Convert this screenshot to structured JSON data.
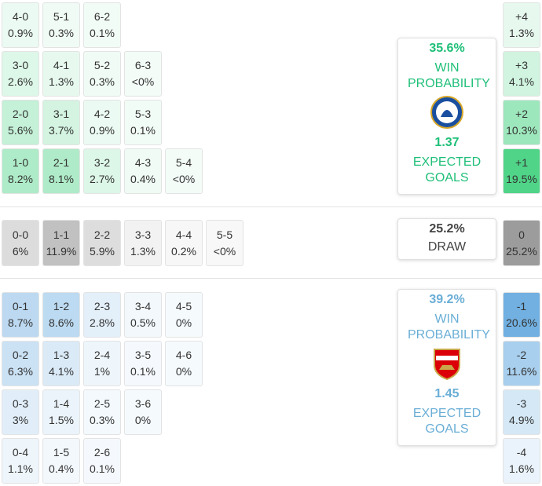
{
  "home": {
    "color": "#2ecc71",
    "rows": [
      [
        {
          "score": "4-0",
          "pct": "0.9%"
        },
        {
          "score": "5-1",
          "pct": "0.3%"
        },
        {
          "score": "6-2",
          "pct": "0.1%"
        }
      ],
      [
        {
          "score": "3-0",
          "pct": "2.6%"
        },
        {
          "score": "4-1",
          "pct": "1.3%"
        },
        {
          "score": "5-2",
          "pct": "0.3%"
        },
        {
          "score": "6-3",
          "pct": "<0%"
        }
      ],
      [
        {
          "score": "2-0",
          "pct": "5.6%"
        },
        {
          "score": "3-1",
          "pct": "3.7%"
        },
        {
          "score": "4-2",
          "pct": "0.9%"
        },
        {
          "score": "5-3",
          "pct": "0.1%"
        }
      ],
      [
        {
          "score": "1-0",
          "pct": "8.2%"
        },
        {
          "score": "2-1",
          "pct": "8.1%"
        },
        {
          "score": "3-2",
          "pct": "2.7%"
        },
        {
          "score": "4-3",
          "pct": "0.4%"
        },
        {
          "score": "5-4",
          "pct": "<0%"
        }
      ]
    ],
    "margins": [
      {
        "score": "+4",
        "pct": "1.3%"
      },
      {
        "score": "+3",
        "pct": "4.1%"
      },
      {
        "score": "+2",
        "pct": "10.3%"
      },
      {
        "score": "+1",
        "pct": "19.5%"
      }
    ],
    "win_probability": "35.6%",
    "win_label": "WIN PROBABILITY",
    "expected_goals": "1.37",
    "xg_label": "EXPECTED GOALS"
  },
  "draw": {
    "color": "#8c8c8c",
    "rows": [
      [
        {
          "score": "0-0",
          "pct": "6%"
        },
        {
          "score": "1-1",
          "pct": "11.9%"
        },
        {
          "score": "2-2",
          "pct": "5.9%"
        },
        {
          "score": "3-3",
          "pct": "1.3%"
        },
        {
          "score": "4-4",
          "pct": "0.2%"
        },
        {
          "score": "5-5",
          "pct": "<0%"
        }
      ]
    ],
    "margins": [
      {
        "score": "0",
        "pct": "25.2%"
      }
    ],
    "probability": "25.2%",
    "label": "DRAW"
  },
  "away": {
    "color": "#5aa3dc",
    "rows": [
      [
        {
          "score": "0-1",
          "pct": "8.7%"
        },
        {
          "score": "1-2",
          "pct": "8.6%"
        },
        {
          "score": "2-3",
          "pct": "2.8%"
        },
        {
          "score": "3-4",
          "pct": "0.5%"
        },
        {
          "score": "4-5",
          "pct": "0%"
        }
      ],
      [
        {
          "score": "0-2",
          "pct": "6.3%"
        },
        {
          "score": "1-3",
          "pct": "4.1%"
        },
        {
          "score": "2-4",
          "pct": "1%"
        },
        {
          "score": "3-5",
          "pct": "0.1%"
        },
        {
          "score": "4-6",
          "pct": "0%"
        }
      ],
      [
        {
          "score": "0-3",
          "pct": "3%"
        },
        {
          "score": "1-4",
          "pct": "1.5%"
        },
        {
          "score": "2-5",
          "pct": "0.3%"
        },
        {
          "score": "3-6",
          "pct": "0%"
        }
      ],
      [
        {
          "score": "0-4",
          "pct": "1.1%"
        },
        {
          "score": "1-5",
          "pct": "0.4%"
        },
        {
          "score": "2-6",
          "pct": "0.1%"
        }
      ]
    ],
    "margins": [
      {
        "score": "-1",
        "pct": "20.6%"
      },
      {
        "score": "-2",
        "pct": "11.6%"
      },
      {
        "score": "-3",
        "pct": "4.9%"
      },
      {
        "score": "-4",
        "pct": "1.6%"
      }
    ],
    "win_probability": "39.2%",
    "win_label": "WIN PROBABILITY",
    "expected_goals": "1.45",
    "xg_label": "EXPECTED GOALS"
  }
}
